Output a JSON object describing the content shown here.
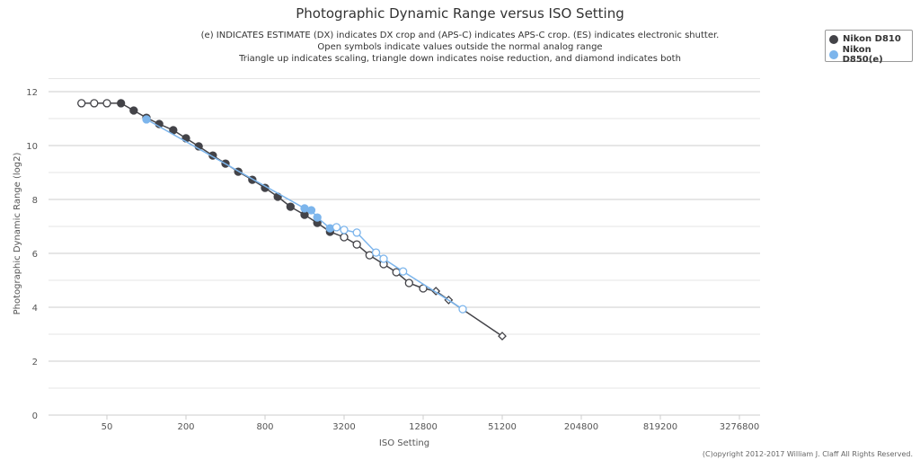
{
  "chart_data": {
    "type": "line",
    "title": "Photographic Dynamic Range versus ISO Setting",
    "subtitle": [
      "(e) INDICATES ESTIMATE (DX) indicates DX crop and (APS-C) indicates APS-C crop. (ES) indicates electronic shutter.",
      "Open symbols indicate values outside the normal analog range",
      "Triangle up indicates scaling, triangle down indicates noise reduction, and diamond indicates both"
    ],
    "xlabel": "ISO Setting",
    "ylabel": "Photographic Dynamic Range (log2)",
    "x_scale": "log2",
    "xlim": [
      25,
      3276800
    ],
    "ylim": [
      0,
      12.5
    ],
    "x_ticks": [
      "50",
      "200",
      "800",
      "3200",
      "12800",
      "51200",
      "204800",
      "819200",
      "3276800"
    ],
    "y_ticks": [
      "0",
      "2",
      "4",
      "6",
      "8",
      "10",
      "12"
    ],
    "legend_position": "top-right",
    "colors": {
      "Nikon D810": "#434348",
      "Nikon D850(e)": "#7cb5ec"
    },
    "series": [
      {
        "name": "Nikon D810",
        "points": [
          [
            32,
            11.57,
            "open"
          ],
          [
            40,
            11.57,
            "open"
          ],
          [
            50,
            11.57,
            "open"
          ],
          [
            64,
            11.57,
            "filled"
          ],
          [
            80,
            11.3,
            "filled"
          ],
          [
            100,
            11.03,
            "filled"
          ],
          [
            125,
            10.8,
            "filled"
          ],
          [
            160,
            10.57,
            "filled"
          ],
          [
            200,
            10.27,
            "filled"
          ],
          [
            250,
            9.97,
            "filled"
          ],
          [
            320,
            9.63,
            "filled"
          ],
          [
            400,
            9.33,
            "filled"
          ],
          [
            500,
            9.03,
            "filled"
          ],
          [
            640,
            8.73,
            "filled"
          ],
          [
            800,
            8.43,
            "filled"
          ],
          [
            1000,
            8.1,
            "filled"
          ],
          [
            1250,
            7.73,
            "filled"
          ],
          [
            1600,
            7.43,
            "filled"
          ],
          [
            2000,
            7.13,
            "filled"
          ],
          [
            2500,
            6.8,
            "filled"
          ],
          [
            3200,
            6.6,
            "open"
          ],
          [
            4000,
            6.33,
            "open"
          ],
          [
            5000,
            5.93,
            "open"
          ],
          [
            6400,
            5.6,
            "open"
          ],
          [
            8000,
            5.3,
            "open"
          ],
          [
            10000,
            4.9,
            "open"
          ],
          [
            12800,
            4.7,
            "open"
          ],
          [
            16000,
            4.6,
            "diamond"
          ],
          [
            20000,
            4.27,
            "diamond"
          ],
          [
            51200,
            2.93,
            "diamond"
          ]
        ]
      },
      {
        "name": "Nikon D850(e)",
        "points": [
          [
            100,
            10.97,
            "filled"
          ],
          [
            1600,
            7.67,
            "filled"
          ],
          [
            1800,
            7.6,
            "filled"
          ],
          [
            2000,
            7.33,
            "filled"
          ],
          [
            2500,
            6.93,
            "filled"
          ],
          [
            2800,
            6.97,
            "open"
          ],
          [
            3200,
            6.87,
            "open"
          ],
          [
            4000,
            6.77,
            "open"
          ],
          [
            5600,
            6.03,
            "open"
          ],
          [
            6400,
            5.8,
            "open"
          ],
          [
            9000,
            5.33,
            "open"
          ],
          [
            25600,
            3.93,
            "open"
          ]
        ]
      }
    ]
  },
  "legend": [
    "Nikon D810",
    "Nikon D850(e)"
  ],
  "credit": "(C)opyright 2012-2017 William J. Claff All Rights Reserved."
}
